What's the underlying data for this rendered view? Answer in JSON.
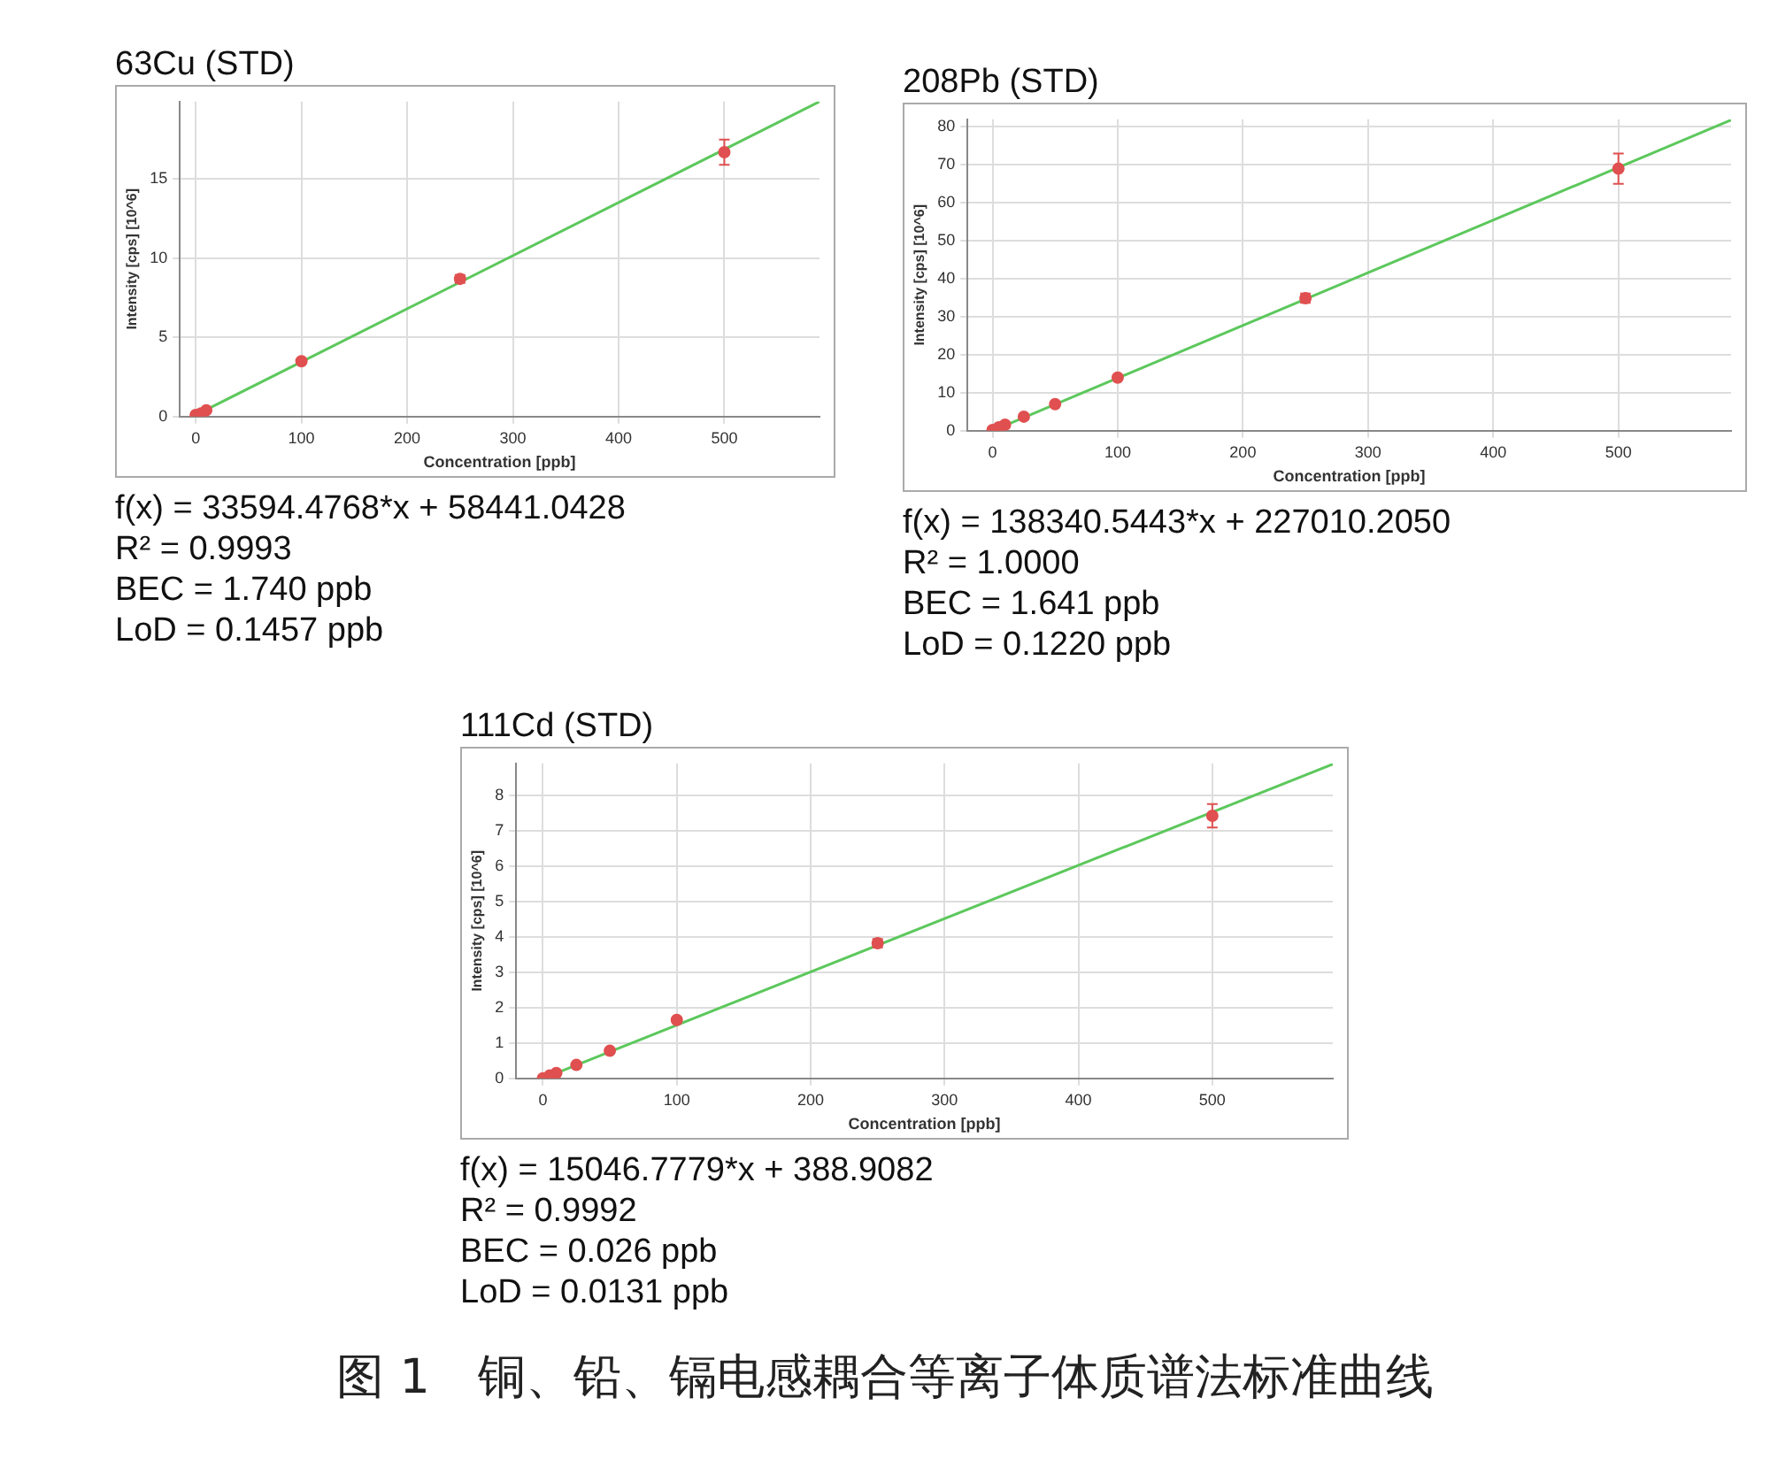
{
  "chart_data": [
    {
      "type": "scatter",
      "title": "63Cu (STD)",
      "xlabel": "Concentration [ppb]",
      "ylabel": "Intensity [cps] [10^6]",
      "xlim": [
        -15,
        590
      ],
      "ylim": [
        0,
        19.9
      ],
      "xticks": [
        0,
        100,
        200,
        300,
        400,
        500
      ],
      "yticks": [
        0,
        5,
        10,
        15
      ],
      "grid": true,
      "legend": false,
      "series": [
        {
          "type": "scatter",
          "marker": "circle",
          "color": "#e05050",
          "x": [
            0,
            5,
            10,
            100,
            250,
            500
          ],
          "values": [
            0.1,
            0.2,
            0.4,
            3.5,
            8.7,
            16.7
          ],
          "errors": [
            null,
            null,
            null,
            0.1,
            0.25,
            0.8
          ]
        },
        {
          "type": "line",
          "marker": "none",
          "color": "#5cc85c",
          "x": [
            0,
            590
          ],
          "values": [
            0.1,
            19.9
          ]
        }
      ],
      "annotations": [
        "f(x) = 33594.4768*x + 58441.0428",
        "R² = 0.9993",
        "BEC = 1.740 ppb",
        "LoD = 0.1457 ppb"
      ]
    },
    {
      "type": "scatter",
      "title": "208Pb (STD)",
      "xlabel": "Concentration [ppb]",
      "ylabel": "Intensity [cps] [10^6]",
      "xlim": [
        -20,
        590
      ],
      "ylim": [
        0,
        82
      ],
      "xticks": [
        0,
        100,
        200,
        300,
        400,
        500
      ],
      "yticks": [
        0,
        10,
        20,
        30,
        40,
        50,
        60,
        70,
        80
      ],
      "grid": true,
      "legend": false,
      "series": [
        {
          "type": "scatter",
          "marker": "circle",
          "color": "#e05050",
          "x": [
            0,
            5,
            10,
            25,
            50,
            100,
            250,
            500
          ],
          "values": [
            0.2,
            0.9,
            1.6,
            3.7,
            7.0,
            14.0,
            34.9,
            69.0
          ],
          "errors": [
            null,
            null,
            null,
            null,
            null,
            0.5,
            1.2,
            4
          ]
        },
        {
          "type": "line",
          "marker": "none",
          "color": "#5cc85c",
          "x": [
            0,
            590
          ],
          "values": [
            0,
            81.8
          ]
        }
      ],
      "annotations": [
        "f(x) = 138340.5443*x + 227010.2050",
        "R² = 1.0000",
        "BEC = 1.641 ppb",
        "LoD = 0.1220 ppb"
      ]
    },
    {
      "type": "scatter",
      "title": "111Cd (STD)",
      "xlabel": "Concentration [ppb]",
      "ylabel": "Intensity [cps] [10^6]",
      "xlim": [
        -20,
        590
      ],
      "ylim": [
        0,
        8.9
      ],
      "xticks": [
        0,
        100,
        200,
        300,
        400,
        500
      ],
      "yticks": [
        0,
        1,
        2,
        3,
        4,
        5,
        6,
        7,
        8
      ],
      "grid": true,
      "legend": false,
      "series": [
        {
          "type": "scatter",
          "marker": "circle",
          "color": "#e05050",
          "x": [
            0,
            5,
            10,
            25,
            50,
            100,
            250,
            500
          ],
          "values": [
            0.0,
            0.08,
            0.15,
            0.38,
            0.78,
            1.65,
            3.82,
            7.42
          ],
          "errors": [
            null,
            null,
            null,
            null,
            null,
            0.07,
            0.12,
            0.33
          ]
        },
        {
          "type": "line",
          "marker": "none",
          "color": "#5cc85c",
          "x": [
            0,
            590
          ],
          "values": [
            0.0,
            8.88
          ]
        }
      ],
      "annotations": [
        "f(x) = 15046.7779*x + 388.9082",
        "R² = 0.9992",
        "BEC = 0.026 ppb",
        "LoD = 0.0131 ppb"
      ]
    },
    {
      "type": "other",
      "title": "图 1　铜、铅、镉电感耦合等离子体质谱法标准曲线"
    }
  ]
}
